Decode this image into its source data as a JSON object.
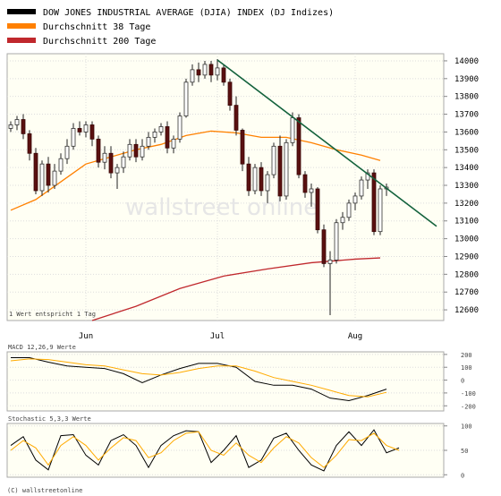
{
  "chart_data": [
    {
      "type": "candlestick",
      "legend": [
        {
          "label": "DOW JONES INDUSTRIAL AVERAGE (DJIA) INDEX (DJ Indizes)",
          "color": "#000000"
        },
        {
          "label": "Durchschnitt 38 Tage",
          "color": "#ff8000"
        },
        {
          "label": "Durchschnitt 200 Tage",
          "color": "#c0282d"
        }
      ],
      "ylim": [
        12540,
        14040
      ],
      "y_ticks": [
        12600,
        12700,
        12800,
        12900,
        13000,
        13100,
        13200,
        13300,
        13400,
        13500,
        13600,
        13700,
        13800,
        13900,
        14000
      ],
      "x_ticks": [
        {
          "label": "Jun",
          "index": 12
        },
        {
          "label": "Jul",
          "index": 33
        },
        {
          "label": "Aug",
          "index": 55
        }
      ],
      "footnote": "1 Wert entspricht 1 Tag",
      "watermark": "wallstreet online",
      "candles": [
        [
          13620,
          13660,
          13600,
          13640
        ],
        [
          13640,
          13690,
          13610,
          13670
        ],
        [
          13670,
          13700,
          13560,
          13590
        ],
        [
          13590,
          13610,
          13440,
          13480
        ],
        [
          13480,
          13510,
          13250,
          13270
        ],
        [
          13270,
          13440,
          13240,
          13420
        ],
        [
          13420,
          13460,
          13260,
          13300
        ],
        [
          13300,
          13420,
          13280,
          13380
        ],
        [
          13380,
          13480,
          13360,
          13450
        ],
        [
          13450,
          13560,
          13420,
          13520
        ],
        [
          13520,
          13650,
          13500,
          13620
        ],
        [
          13620,
          13660,
          13580,
          13600
        ],
        [
          13600,
          13660,
          13570,
          13640
        ],
        [
          13640,
          13660,
          13520,
          13560
        ],
        [
          13560,
          13580,
          13400,
          13430
        ],
        [
          13430,
          13520,
          13390,
          13480
        ],
        [
          13480,
          13520,
          13340,
          13370
        ],
        [
          13370,
          13420,
          13280,
          13400
        ],
        [
          13400,
          13490,
          13370,
          13460
        ],
        [
          13460,
          13560,
          13440,
          13530
        ],
        [
          13530,
          13560,
          13430,
          13460
        ],
        [
          13460,
          13560,
          13440,
          13520
        ],
        [
          13520,
          13600,
          13500,
          13570
        ],
        [
          13570,
          13620,
          13540,
          13600
        ],
        [
          13600,
          13650,
          13580,
          13630
        ],
        [
          13630,
          13660,
          13480,
          13510
        ],
        [
          13510,
          13580,
          13480,
          13560
        ],
        [
          13560,
          13710,
          13540,
          13690
        ],
        [
          13690,
          13900,
          13680,
          13880
        ],
        [
          13880,
          13980,
          13860,
          13950
        ],
        [
          13950,
          13990,
          13880,
          13920
        ],
        [
          13920,
          14000,
          13900,
          13980
        ],
        [
          13980,
          14000,
          13880,
          13920
        ],
        [
          13920,
          14010,
          13890,
          13960
        ],
        [
          13960,
          13980,
          13860,
          13880
        ],
        [
          13880,
          13900,
          13720,
          13750
        ],
        [
          13750,
          13800,
          13580,
          13610
        ],
        [
          13610,
          13620,
          13380,
          13420
        ],
        [
          13420,
          13460,
          13240,
          13270
        ],
        [
          13270,
          13420,
          13250,
          13400
        ],
        [
          13400,
          13430,
          13240,
          13270
        ],
        [
          13270,
          13380,
          13200,
          13360
        ],
        [
          13360,
          13540,
          13340,
          13520
        ],
        [
          13520,
          13580,
          13210,
          13240
        ],
        [
          13240,
          13560,
          13220,
          13540
        ],
        [
          13540,
          13710,
          13520,
          13680
        ],
        [
          13680,
          13700,
          13340,
          13360
        ],
        [
          13360,
          13380,
          13230,
          13260
        ],
        [
          13260,
          13310,
          13180,
          13280
        ],
        [
          13280,
          13290,
          13030,
          13050
        ],
        [
          13050,
          13080,
          12840,
          12860
        ],
        [
          12860,
          12930,
          12570,
          12880
        ],
        [
          12880,
          13110,
          12860,
          13090
        ],
        [
          13090,
          13150,
          13050,
          13120
        ],
        [
          13120,
          13220,
          13100,
          13200
        ],
        [
          13200,
          13260,
          13160,
          13240
        ],
        [
          13240,
          13350,
          13220,
          13330
        ],
        [
          13330,
          13390,
          13280,
          13370
        ],
        [
          13370,
          13390,
          13020,
          13040
        ],
        [
          13040,
          13300,
          13020,
          13280
        ],
        [
          13280,
          13310,
          13240,
          13290
        ]
      ],
      "series": [
        {
          "name": "Durchschnitt 38 Tage",
          "points": [
            [
              0,
              13160
            ],
            [
              4,
              13220
            ],
            [
              8,
              13320
            ],
            [
              12,
              13420
            ],
            [
              16,
              13460
            ],
            [
              20,
              13500
            ],
            [
              24,
              13530
            ],
            [
              28,
              13580
            ],
            [
              32,
              13605
            ],
            [
              36,
              13595
            ],
            [
              40,
              13570
            ],
            [
              44,
              13570
            ],
            [
              48,
              13540
            ],
            [
              52,
              13500
            ],
            [
              56,
              13470
            ],
            [
              59,
              13440
            ]
          ]
        },
        {
          "name": "Durchschnitt 200 Tage",
          "points": [
            [
              13,
              12530
            ],
            [
              20,
              12620
            ],
            [
              27,
              12720
            ],
            [
              34,
              12790
            ],
            [
              41,
              12830
            ],
            [
              48,
              12865
            ],
            [
              55,
              12885
            ],
            [
              59,
              12892
            ]
          ]
        }
      ],
      "trendline": {
        "color": "#13623c",
        "points": [
          [
            33,
            14005
          ],
          [
            68,
            13070
          ]
        ]
      }
    },
    {
      "type": "line",
      "label": "MACD 12,26,9 Werte",
      "ylim": [
        -240,
        220
      ],
      "y_ticks": [
        200,
        100,
        0,
        -100,
        -200
      ],
      "series": [
        {
          "name": "MACD",
          "color": "#000000",
          "points": [
            [
              0,
              175
            ],
            [
              3,
              175
            ],
            [
              6,
              140
            ],
            [
              9,
              110
            ],
            [
              12,
              100
            ],
            [
              15,
              90
            ],
            [
              18,
              50
            ],
            [
              21,
              -20
            ],
            [
              24,
              40
            ],
            [
              27,
              90
            ],
            [
              30,
              130
            ],
            [
              33,
              130
            ],
            [
              36,
              100
            ],
            [
              39,
              -10
            ],
            [
              42,
              -40
            ],
            [
              45,
              -40
            ],
            [
              48,
              -70
            ],
            [
              51,
              -140
            ],
            [
              54,
              -160
            ],
            [
              57,
              -120
            ],
            [
              60,
              -70
            ]
          ]
        },
        {
          "name": "Signal",
          "color": "#ffaa00",
          "points": [
            [
              0,
              150
            ],
            [
              3,
              165
            ],
            [
              6,
              160
            ],
            [
              9,
              140
            ],
            [
              12,
              120
            ],
            [
              15,
              110
            ],
            [
              18,
              80
            ],
            [
              21,
              50
            ],
            [
              24,
              40
            ],
            [
              27,
              60
            ],
            [
              30,
              90
            ],
            [
              33,
              110
            ],
            [
              36,
              110
            ],
            [
              39,
              70
            ],
            [
              42,
              20
            ],
            [
              45,
              -10
            ],
            [
              48,
              -40
            ],
            [
              51,
              -80
            ],
            [
              54,
              -120
            ],
            [
              57,
              -130
            ],
            [
              60,
              -95
            ]
          ]
        }
      ]
    },
    {
      "type": "line",
      "label": "Stochastic 5,3,3 Werte",
      "ylim": [
        -5,
        105
      ],
      "y_ticks": [
        100,
        50,
        0
      ],
      "series": [
        {
          "name": "%K",
          "color": "#000000",
          "points": [
            [
              0,
              60
            ],
            [
              2,
              78
            ],
            [
              4,
              30
            ],
            [
              6,
              10
            ],
            [
              8,
              80
            ],
            [
              10,
              82
            ],
            [
              12,
              40
            ],
            [
              14,
              20
            ],
            [
              16,
              70
            ],
            [
              18,
              82
            ],
            [
              20,
              60
            ],
            [
              22,
              15
            ],
            [
              24,
              60
            ],
            [
              26,
              80
            ],
            [
              28,
              90
            ],
            [
              30,
              88
            ],
            [
              32,
              25
            ],
            [
              34,
              50
            ],
            [
              36,
              80
            ],
            [
              38,
              15
            ],
            [
              40,
              30
            ],
            [
              42,
              75
            ],
            [
              44,
              85
            ],
            [
              46,
              50
            ],
            [
              48,
              20
            ],
            [
              50,
              8
            ],
            [
              52,
              60
            ],
            [
              54,
              88
            ],
            [
              56,
              60
            ],
            [
              58,
              92
            ],
            [
              60,
              45
            ],
            [
              62,
              55
            ]
          ]
        },
        {
          "name": "%D",
          "color": "#ffaa00",
          "points": [
            [
              0,
              50
            ],
            [
              2,
              70
            ],
            [
              4,
              55
            ],
            [
              6,
              20
            ],
            [
              8,
              60
            ],
            [
              10,
              78
            ],
            [
              12,
              60
            ],
            [
              14,
              30
            ],
            [
              16,
              55
            ],
            [
              18,
              76
            ],
            [
              20,
              70
            ],
            [
              22,
              35
            ],
            [
              24,
              45
            ],
            [
              26,
              70
            ],
            [
              28,
              85
            ],
            [
              30,
              88
            ],
            [
              32,
              50
            ],
            [
              34,
              40
            ],
            [
              36,
              65
            ],
            [
              38,
              40
            ],
            [
              40,
              25
            ],
            [
              42,
              55
            ],
            [
              44,
              78
            ],
            [
              46,
              65
            ],
            [
              48,
              35
            ],
            [
              50,
              15
            ],
            [
              52,
              40
            ],
            [
              54,
              72
            ],
            [
              56,
              70
            ],
            [
              58,
              85
            ],
            [
              60,
              60
            ],
            [
              62,
              50
            ]
          ]
        }
      ]
    }
  ],
  "footer": "(C) wallstreetonline"
}
